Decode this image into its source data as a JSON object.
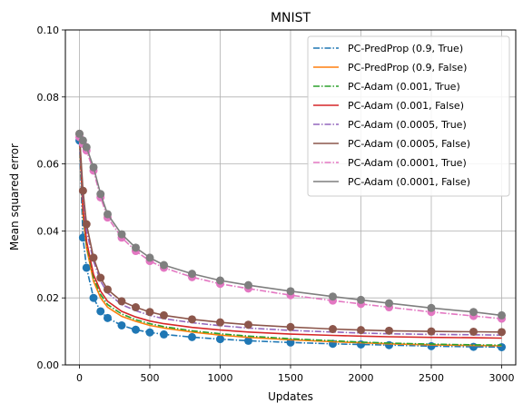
{
  "chart_data": {
    "type": "line",
    "title": "MNIST",
    "xlabel": "Updates",
    "ylabel": "Mean squared error",
    "xlim": [
      -100,
      3100
    ],
    "ylim": [
      0,
      0.1
    ],
    "xticks": [
      0,
      500,
      1000,
      1500,
      2000,
      2500,
      3000
    ],
    "xtick_labels": [
      "0",
      "500",
      "1000",
      "1500",
      "2000",
      "2500",
      "3000"
    ],
    "yticks": [
      0,
      0.02,
      0.04,
      0.06,
      0.08,
      0.1
    ],
    "ytick_labels": [
      "0.00",
      "0.02",
      "0.04",
      "0.06",
      "0.08",
      "0.10"
    ],
    "grid": true,
    "legend_position": "top-right",
    "x": [
      0,
      25,
      50,
      100,
      150,
      200,
      300,
      400,
      500,
      600,
      800,
      1000,
      1200,
      1500,
      1800,
      2000,
      2200,
      2500,
      2800,
      3000
    ],
    "series": [
      {
        "name": "PC-PredProp (0.9, True)",
        "color": "#1f77b4",
        "dash": "dashdot",
        "markers": true,
        "values": [
          0.067,
          0.038,
          0.029,
          0.02,
          0.016,
          0.014,
          0.0118,
          0.0105,
          0.0097,
          0.0091,
          0.0083,
          0.0077,
          0.0072,
          0.0067,
          0.0063,
          0.0061,
          0.0059,
          0.0056,
          0.0054,
          0.0053
        ]
      },
      {
        "name": "PC-PredProp (0.9, False)",
        "color": "#ff7f0e",
        "dash": "solid",
        "markers": false,
        "values": [
          0.068,
          0.045,
          0.035,
          0.025,
          0.02,
          0.0172,
          0.0145,
          0.013,
          0.0118,
          0.011,
          0.0098,
          0.0089,
          0.0082,
          0.0075,
          0.0069,
          0.0066,
          0.0063,
          0.006,
          0.0058,
          0.0057
        ]
      },
      {
        "name": "PC-Adam (0.001, True)",
        "color": "#2ca02c",
        "dash": "dashdot",
        "markers": false,
        "values": [
          0.068,
          0.046,
          0.036,
          0.026,
          0.021,
          0.018,
          0.0152,
          0.0135,
          0.0123,
          0.0114,
          0.0102,
          0.0093,
          0.0086,
          0.0078,
          0.0072,
          0.0068,
          0.0065,
          0.0062,
          0.006,
          0.0059
        ]
      },
      {
        "name": "PC-Adam (0.001, False)",
        "color": "#d62728",
        "dash": "solid",
        "markers": false,
        "values": [
          0.069,
          0.047,
          0.037,
          0.027,
          0.022,
          0.019,
          0.016,
          0.0143,
          0.0131,
          0.0123,
          0.0112,
          0.0104,
          0.0098,
          0.0092,
          0.0088,
          0.0086,
          0.0084,
          0.0082,
          0.0081,
          0.008
        ]
      },
      {
        "name": "PC-Adam (0.0005, True)",
        "color": "#9467bd",
        "dash": "dashdot",
        "markers": false,
        "values": [
          0.068,
          0.05,
          0.04,
          0.031,
          0.025,
          0.0215,
          0.018,
          0.0162,
          0.0148,
          0.0138,
          0.0126,
          0.0117,
          0.011,
          0.0103,
          0.0098,
          0.0095,
          0.0093,
          0.0091,
          0.009,
          0.0089
        ]
      },
      {
        "name": "PC-Adam (0.0005, False)",
        "color": "#8c564b",
        "dash": "solid",
        "markers": true,
        "values": [
          0.069,
          0.052,
          0.042,
          0.032,
          0.026,
          0.0225,
          0.019,
          0.0172,
          0.0158,
          0.0148,
          0.0136,
          0.0127,
          0.012,
          0.0113,
          0.0107,
          0.0104,
          0.0102,
          0.01,
          0.0099,
          0.0098
        ]
      },
      {
        "name": "PC-Adam (0.0001, True)",
        "color": "#e377c2",
        "dash": "dashdot",
        "markers": true,
        "values": [
          0.068,
          0.066,
          0.064,
          0.058,
          0.05,
          0.044,
          0.038,
          0.034,
          0.031,
          0.029,
          0.0262,
          0.0242,
          0.0228,
          0.0208,
          0.0192,
          0.0182,
          0.0172,
          0.0158,
          0.0146,
          0.0138
        ]
      },
      {
        "name": "PC-Adam (0.0001, False)",
        "color": "#7f7f7f",
        "dash": "solid",
        "markers": true,
        "values": [
          0.069,
          0.067,
          0.065,
          0.059,
          0.051,
          0.045,
          0.039,
          0.035,
          0.032,
          0.0298,
          0.0272,
          0.0252,
          0.0238,
          0.022,
          0.0204,
          0.0194,
          0.0184,
          0.017,
          0.0158,
          0.0148
        ]
      }
    ]
  }
}
